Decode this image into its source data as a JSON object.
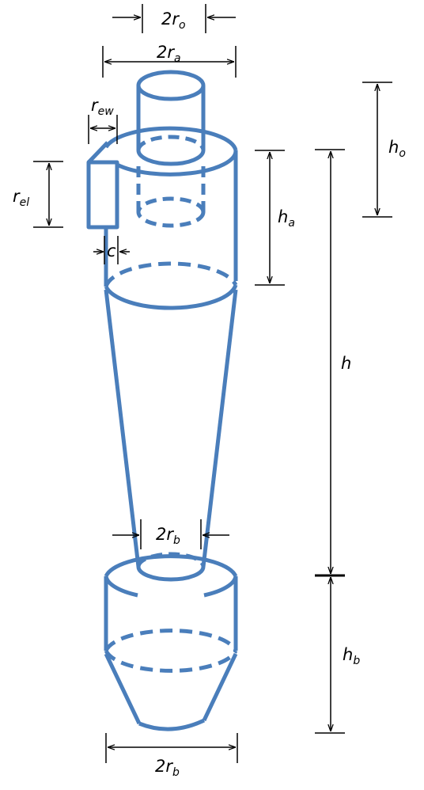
{
  "colors": {
    "body": "#4a7ebb",
    "dimension": "#000000",
    "background": "#ffffff"
  },
  "labels": {
    "r_o": {
      "main": "2r",
      "sub": "o"
    },
    "r_a": {
      "main": "2r",
      "sub": "a"
    },
    "r_ew": {
      "main": "r",
      "sub": "ew"
    },
    "r_el": {
      "main": "r",
      "sub": "el"
    },
    "c": {
      "main": "c",
      "sub": ""
    },
    "h_a": {
      "main": "h",
      "sub": "a"
    },
    "h_o": {
      "main": "h",
      "sub": "o"
    },
    "h": {
      "main": "h",
      "sub": ""
    },
    "r_b_neck": {
      "main": "2r",
      "sub": "b"
    },
    "h_b": {
      "main": "h",
      "sub": "b"
    },
    "r_b_bottom": {
      "main": "2r",
      "sub": "b"
    }
  }
}
